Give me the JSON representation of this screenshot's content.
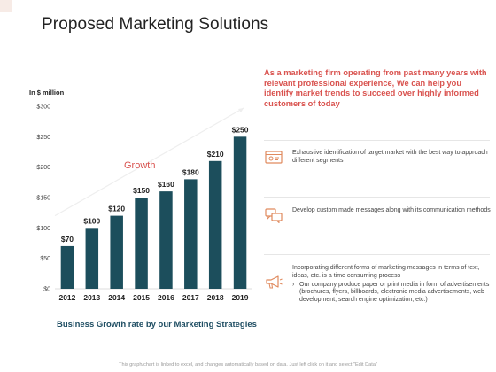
{
  "page": {
    "title": "Proposed Marketing Solutions",
    "caption": "Business Growth rate by our Marketing Strategies",
    "footer": "This graph/chart is linked to excel, and changes automatically based on data. Just left click on it and select \"Edit Data\""
  },
  "colors": {
    "bar": "#1c4e5c",
    "accent": "#d9534f",
    "caption": "#1f4e63",
    "icon": "#e08a5e"
  },
  "chart_data": {
    "type": "bar",
    "title": "",
    "ylabel": "In $ million",
    "xlabel": "",
    "categories": [
      "2012",
      "2013",
      "2014",
      "2015",
      "2016",
      "2017",
      "2018",
      "2019"
    ],
    "values": [
      70,
      100,
      120,
      150,
      160,
      180,
      210,
      250
    ],
    "data_labels": [
      "$70",
      "$100",
      "$120",
      "$150",
      "$160",
      "$180",
      "$210",
      "$250"
    ],
    "yticks": [
      0,
      50,
      100,
      150,
      200,
      250,
      300
    ],
    "ytick_labels": [
      "$0",
      "$50",
      "$100",
      "$150",
      "$200",
      "$250",
      "$300"
    ],
    "ylim": [
      0,
      300
    ],
    "grid": false,
    "annotation": "Growth"
  },
  "intro": "As a marketing firm operating from past many years with relevant professional experience, We can help you identify market trends to succeed over highly informed customers of today",
  "features": [
    {
      "icon": "browser-window-icon",
      "text": "Exhaustive identification of target market with the best way to approach different segments",
      "sub": ""
    },
    {
      "icon": "chat-bubbles-icon",
      "text": "Develop custom made messages along with its communication methods",
      "sub": ""
    },
    {
      "icon": "megaphone-icon",
      "text": "Incorporating different forms of marketing messages in terms of text, ideas, etc. is a time consuming process",
      "sub": "Our company produce paper or print media in form of advertisements (brochures, flyers, billboards, electronic media advertisements, web development, search engine optimization, etc.)"
    }
  ]
}
